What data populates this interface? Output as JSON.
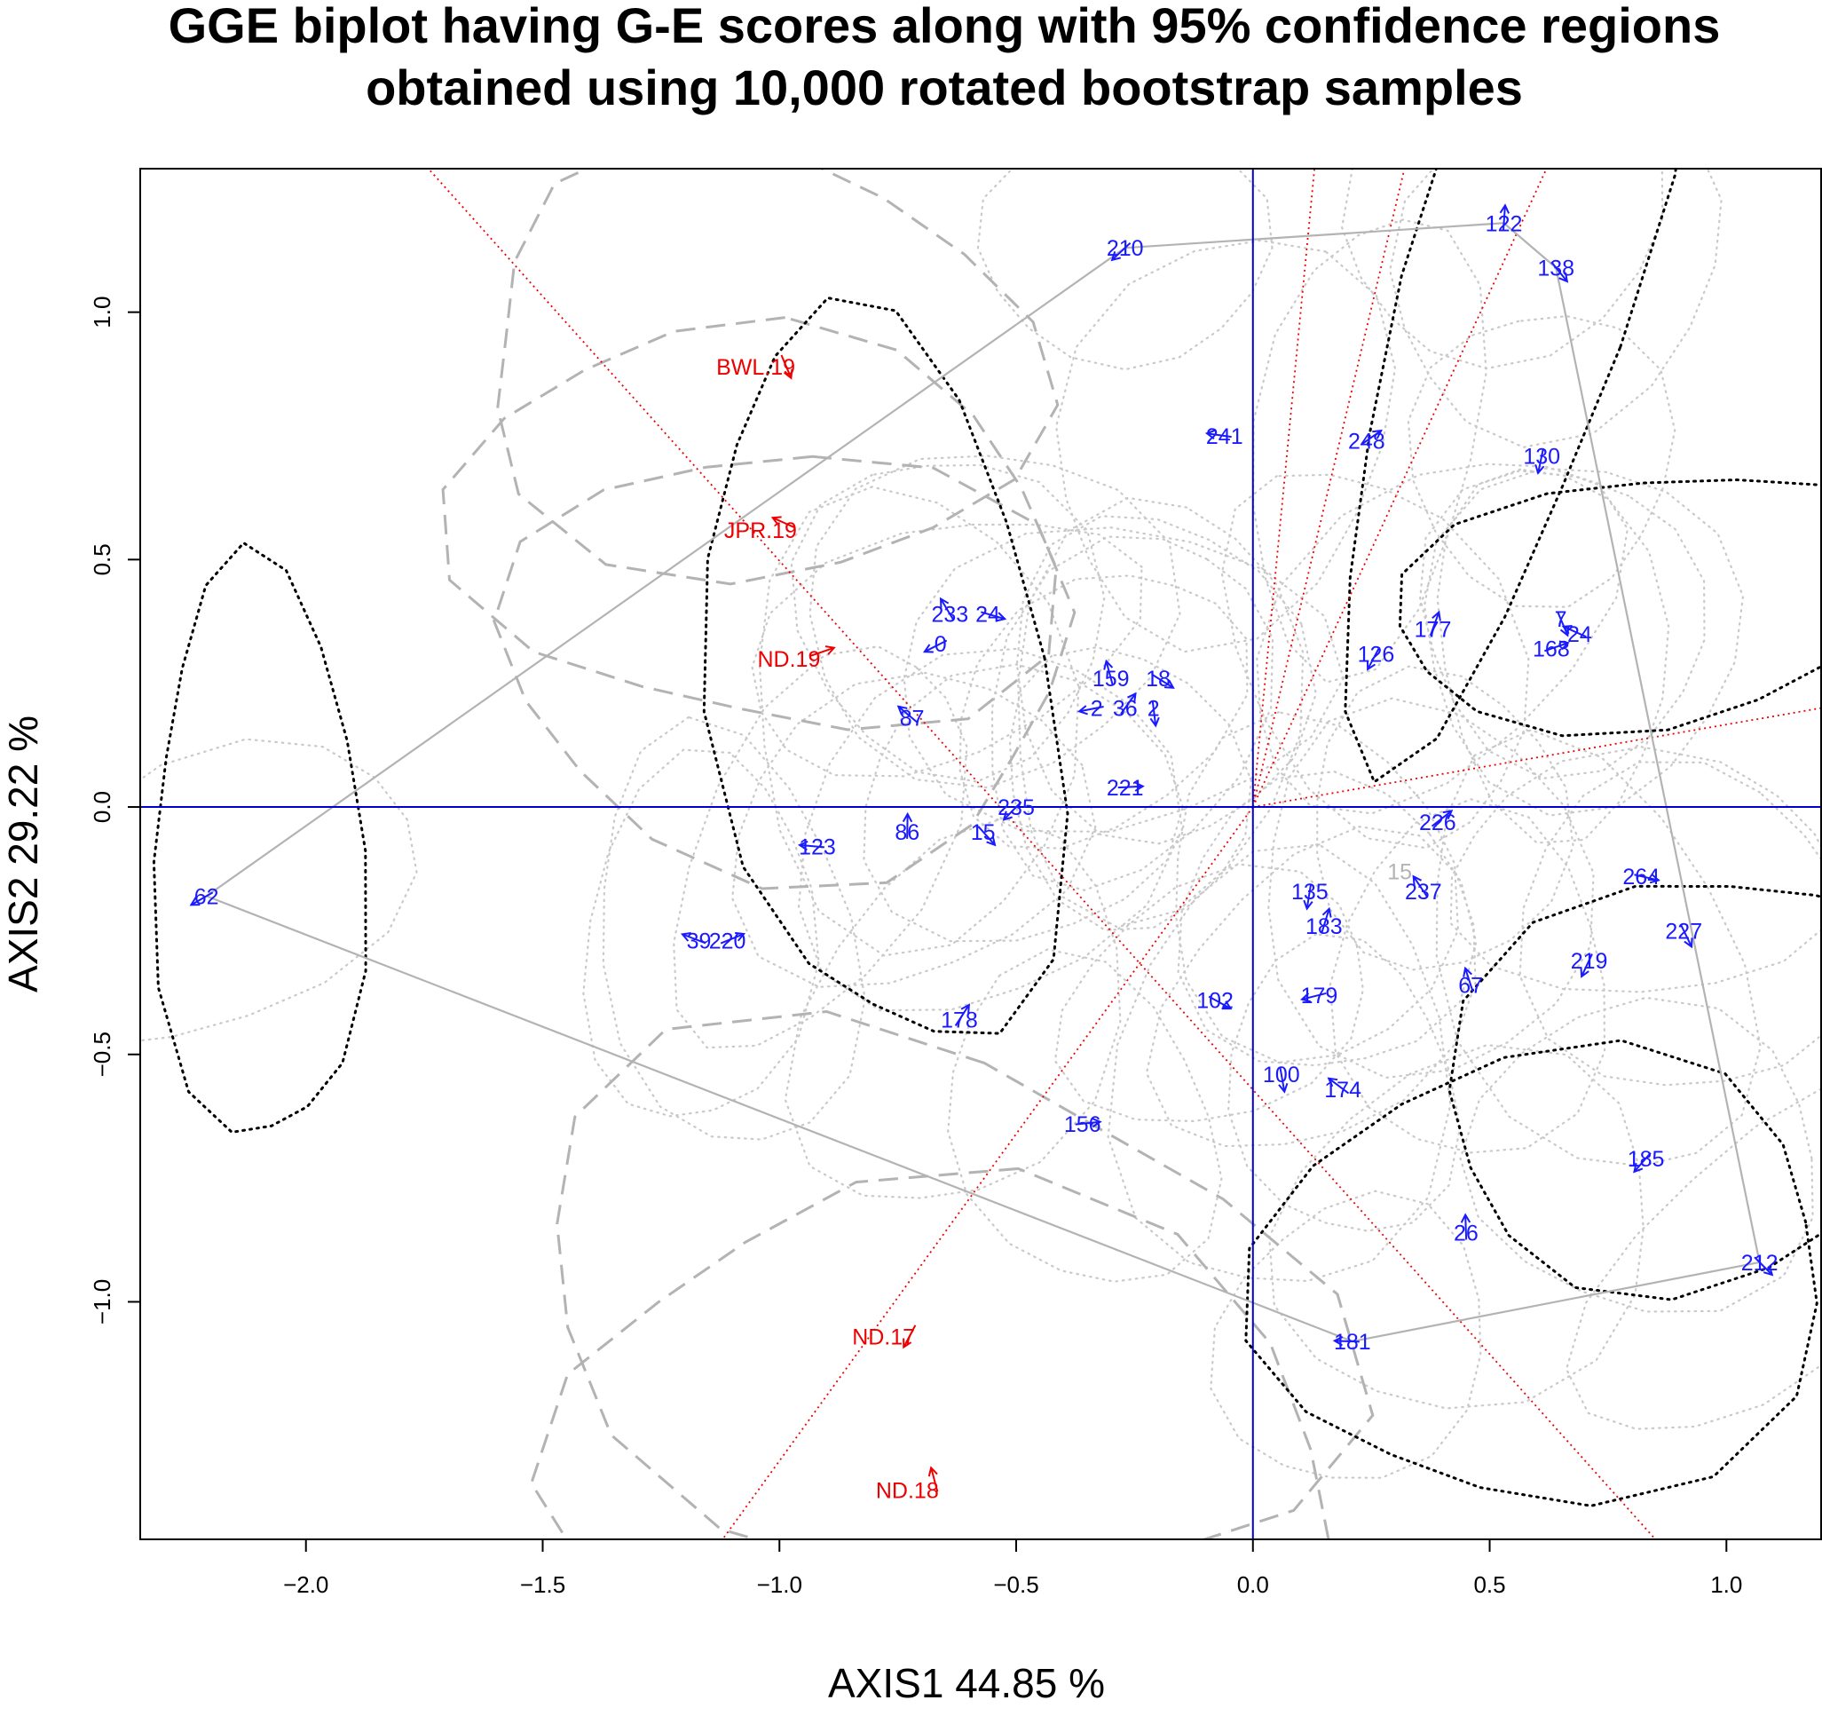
{
  "chart_data": {
    "type": "scatter",
    "title": [
      "GGE biplot having G-E scores along with 95% confidence regions",
      "obtained using 10,000 rotated bootstrap samples"
    ],
    "xlabel": "AXIS1 44.85 %",
    "ylabel": "AXIS2 29.22 %",
    "xlim": [
      -2.35,
      1.2
    ],
    "ylim": [
      -1.48,
      1.29
    ],
    "xticks": [
      -2.0,
      -1.5,
      -1.0,
      -0.5,
      0.0,
      0.5,
      1.0
    ],
    "yticks": [
      -1.0,
      -0.5,
      0.0,
      0.5,
      1.0
    ],
    "xtick_labels": [
      "−2.0",
      "−1.5",
      "−1.0",
      "−0.5",
      "0.0",
      "0.5",
      "1.0"
    ],
    "ytick_labels": [
      "−1.0",
      "−0.5",
      "0.0",
      "0.5",
      "1.0"
    ],
    "colors": {
      "genotype": "#1a1aff",
      "environment": "#ee0000",
      "hull": "#b3b3b3",
      "axis_lines": "#0000cc",
      "region_ring": "#000000",
      "region_dash": "#b3b3b3",
      "region_dots": "#c9c9c9"
    },
    "environments": [
      {
        "label": "BWL.19",
        "x": -1.05,
        "y": 0.89
      },
      {
        "label": "JPR.19",
        "x": -1.04,
        "y": 0.56
      },
      {
        "label": "ND.19",
        "x": -0.98,
        "y": 0.3
      },
      {
        "label": "ND.17",
        "x": -0.78,
        "y": -1.07
      },
      {
        "label": "ND.18",
        "x": -0.73,
        "y": -1.38
      }
    ],
    "genotypes": [
      {
        "label": "210",
        "x": -0.27,
        "y": 1.13
      },
      {
        "label": "122",
        "x": 0.53,
        "y": 1.18
      },
      {
        "label": "138",
        "x": 0.64,
        "y": 1.09
      },
      {
        "label": "241",
        "x": -0.06,
        "y": 0.75
      },
      {
        "label": "248",
        "x": 0.24,
        "y": 0.74
      },
      {
        "label": "130",
        "x": 0.61,
        "y": 0.71
      },
      {
        "label": "233",
        "x": -0.64,
        "y": 0.39
      },
      {
        "label": "24",
        "x": -0.56,
        "y": 0.39
      },
      {
        "label": "0",
        "x": -0.66,
        "y": 0.33
      },
      {
        "label": "177",
        "x": 0.38,
        "y": 0.36
      },
      {
        "label": "7",
        "x": 0.65,
        "y": 0.38
      },
      {
        "label": "24",
        "x": 0.69,
        "y": 0.35
      },
      {
        "label": "168",
        "x": 0.63,
        "y": 0.32
      },
      {
        "label": "126",
        "x": 0.26,
        "y": 0.31
      },
      {
        "label": "159",
        "x": -0.3,
        "y": 0.26
      },
      {
        "label": "18",
        "x": -0.2,
        "y": 0.26
      },
      {
        "label": "2",
        "x": -0.33,
        "y": 0.2
      },
      {
        "label": "36",
        "x": -0.27,
        "y": 0.2
      },
      {
        "label": "2",
        "x": -0.21,
        "y": 0.2
      },
      {
        "label": "87",
        "x": -0.72,
        "y": 0.18
      },
      {
        "label": "221",
        "x": -0.27,
        "y": 0.04
      },
      {
        "label": "235",
        "x": -0.5,
        "y": 0.0
      },
      {
        "label": "86",
        "x": -0.73,
        "y": -0.05
      },
      {
        "label": "15",
        "x": -0.57,
        "y": -0.05
      },
      {
        "label": "123",
        "x": -0.92,
        "y": -0.08
      },
      {
        "label": "226",
        "x": 0.39,
        "y": -0.03
      },
      {
        "label": "135",
        "x": 0.12,
        "y": -0.17
      },
      {
        "label": "237",
        "x": 0.36,
        "y": -0.17
      },
      {
        "label": "264",
        "x": 0.82,
        "y": -0.14
      },
      {
        "label": "62",
        "x": -2.21,
        "y": -0.18
      },
      {
        "label": "183",
        "x": 0.15,
        "y": -0.24
      },
      {
        "label": "227",
        "x": 0.91,
        "y": -0.25
      },
      {
        "label": "39",
        "x": -1.17,
        "y": -0.27
      },
      {
        "label": "220",
        "x": -1.11,
        "y": -0.27
      },
      {
        "label": "219",
        "x": 0.71,
        "y": -0.31
      },
      {
        "label": "67",
        "x": 0.46,
        "y": -0.36
      },
      {
        "label": "102",
        "x": -0.08,
        "y": -0.39
      },
      {
        "label": "179",
        "x": 0.14,
        "y": -0.38
      },
      {
        "label": "178",
        "x": -0.62,
        "y": -0.43
      },
      {
        "label": "100",
        "x": 0.06,
        "y": -0.54
      },
      {
        "label": "174",
        "x": 0.19,
        "y": -0.57
      },
      {
        "label": "156",
        "x": -0.36,
        "y": -0.64
      },
      {
        "label": "185",
        "x": 0.83,
        "y": -0.71
      },
      {
        "label": "26",
        "x": 0.45,
        "y": -0.86
      },
      {
        "label": "212",
        "x": 1.07,
        "y": -0.92
      },
      {
        "label": "181",
        "x": 0.21,
        "y": -1.08
      }
    ],
    "hull": [
      "210",
      "122",
      "138",
      "212",
      "181",
      "62"
    ],
    "grey_label": {
      "label": "15",
      "x": 0.31,
      "y": -0.13
    }
  }
}
